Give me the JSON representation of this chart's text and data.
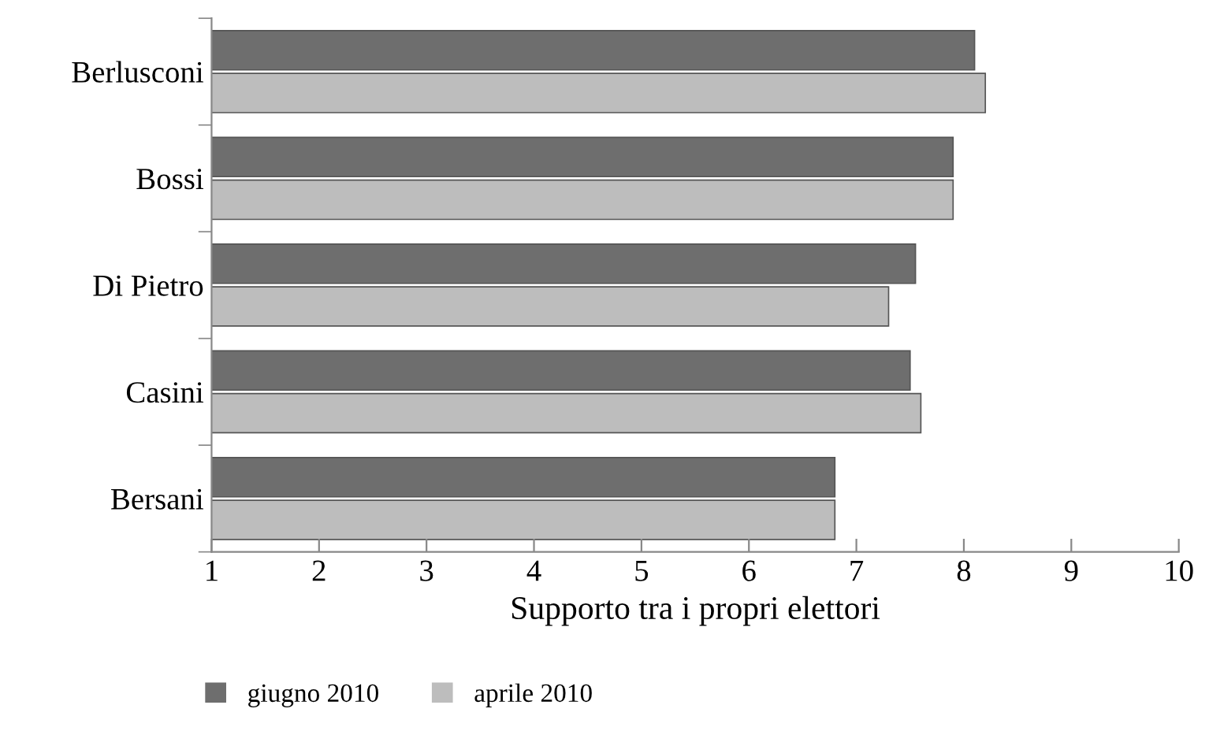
{
  "chart_data": {
    "type": "bar",
    "orientation": "horizontal",
    "categories": [
      "Berlusconi",
      "Bossi",
      "Di Pietro",
      "Casini",
      "Bersani"
    ],
    "series": [
      {
        "name": "giugno 2010",
        "color": "#6e6e6e",
        "values": [
          8.1,
          7.9,
          7.55,
          7.5,
          6.8
        ]
      },
      {
        "name": "aprile 2010",
        "color": "#bdbdbd",
        "values": [
          8.2,
          7.9,
          7.3,
          7.6,
          6.8
        ]
      }
    ],
    "xlabel": "Supporto tra i propri elettori",
    "xlim": [
      1,
      10
    ],
    "xticks": [
      1,
      2,
      3,
      4,
      5,
      6,
      7,
      8,
      9,
      10
    ],
    "grid": false,
    "legend": "bottom"
  }
}
